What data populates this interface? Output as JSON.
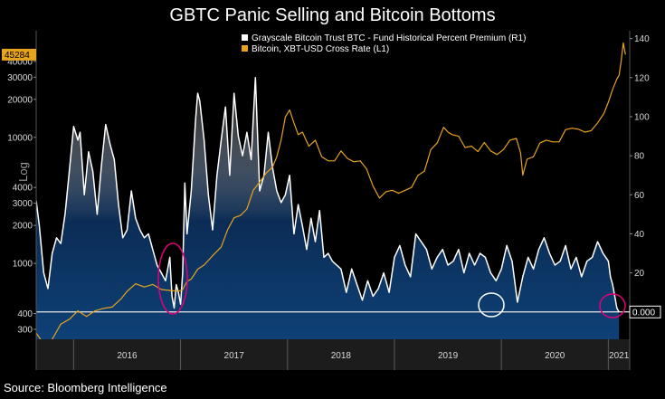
{
  "title": "GBTC Panic Selling and Bitcoin Bottoms",
  "source": "Source: Bloomberg Intelligence",
  "chart_data": {
    "type": "line",
    "title": "GBTC Panic Selling and Bitcoin Bottoms",
    "ylabel_left": "Log",
    "x_categories": [
      "2016",
      "2017",
      "2018",
      "2019",
      "2020",
      "2021"
    ],
    "x_domain": [
      2015.65,
      2021.2
    ],
    "y_left": {
      "scale": "log",
      "range": [
        250,
        70000
      ],
      "ticks": [
        300,
        400,
        1000,
        2000,
        3000,
        4000,
        10000,
        20000,
        30000,
        40000
      ]
    },
    "y_right": {
      "scale": "linear",
      "range": [
        -14,
        144
      ],
      "ticks": [
        20,
        40,
        60,
        80,
        100,
        120,
        140
      ]
    },
    "series": [
      {
        "name": "Grayscale Bitcoin Trust BTC - Fund Historical Percent Premium (R1)",
        "axis": "right",
        "color": "#ffffff",
        "style": "area",
        "x": [
          2015.65,
          2015.68,
          2015.72,
          2015.76,
          2015.8,
          2015.84,
          2015.88,
          2015.92,
          2015.96,
          2016.0,
          2016.04,
          2016.06,
          2016.1,
          2016.14,
          2016.18,
          2016.22,
          2016.26,
          2016.3,
          2016.34,
          2016.38,
          2016.42,
          2016.46,
          2016.5,
          2016.54,
          2016.58,
          2016.62,
          2016.66,
          2016.7,
          2016.74,
          2016.78,
          2016.82,
          2016.86,
          2016.9,
          2016.92,
          2016.94,
          2016.96,
          2016.98,
          2017.0,
          2017.02,
          2017.04,
          2017.06,
          2017.1,
          2017.14,
          2017.16,
          2017.18,
          2017.22,
          2017.26,
          2017.3,
          2017.34,
          2017.38,
          2017.42,
          2017.46,
          2017.5,
          2017.54,
          2017.58,
          2017.62,
          2017.66,
          2017.7,
          2017.74,
          2017.78,
          2017.82,
          2017.86,
          2017.9,
          2017.94,
          2017.98,
          2018.02,
          2018.06,
          2018.1,
          2018.14,
          2018.18,
          2018.22,
          2018.26,
          2018.3,
          2018.34,
          2018.38,
          2018.42,
          2018.46,
          2018.5,
          2018.55,
          2018.6,
          2018.65,
          2018.7,
          2018.75,
          2018.8,
          2018.85,
          2018.9,
          2018.95,
          2019.0,
          2019.05,
          2019.1,
          2019.15,
          2019.2,
          2019.25,
          2019.3,
          2019.35,
          2019.4,
          2019.45,
          2019.5,
          2019.55,
          2019.6,
          2019.65,
          2019.7,
          2019.75,
          2019.8,
          2019.85,
          2019.9,
          2019.95,
          2020.0,
          2020.05,
          2020.1,
          2020.15,
          2020.2,
          2020.25,
          2020.3,
          2020.35,
          2020.4,
          2020.45,
          2020.5,
          2020.55,
          2020.6,
          2020.65,
          2020.7,
          2020.75,
          2020.8,
          2020.85,
          2020.9,
          2020.95,
          2021.0,
          2021.02,
          2021.04,
          2021.06,
          2021.08,
          2021.1
        ],
        "values": [
          57,
          44,
          20,
          12,
          30,
          38,
          35,
          50,
          72,
          95,
          88,
          92,
          60,
          82,
          72,
          50,
          75,
          96,
          86,
          78,
          55,
          38,
          42,
          62,
          48,
          42,
          38,
          40,
          32,
          24,
          20,
          16,
          28,
          8,
          2,
          14,
          10,
          4,
          20,
          66,
          40,
          62,
          98,
          112,
          108,
          88,
          60,
          42,
          70,
          88,
          105,
          70,
          112,
          90,
          80,
          92,
          78,
          120,
          62,
          70,
          92,
          74,
          62,
          56,
          60,
          70,
          40,
          55,
          44,
          32,
          48,
          36,
          52,
          28,
          30,
          26,
          24,
          22,
          10,
          22,
          14,
          6,
          16,
          8,
          12,
          20,
          10,
          28,
          34,
          24,
          18,
          40,
          36,
          32,
          22,
          28,
          32,
          24,
          26,
          32,
          20,
          30,
          24,
          30,
          28,
          20,
          16,
          22,
          34,
          26,
          5,
          18,
          28,
          22,
          32,
          38,
          30,
          24,
          26,
          34,
          22,
          28,
          18,
          26,
          28,
          36,
          30,
          26,
          18,
          14,
          8,
          2,
          0
        ]
      },
      {
        "name": "Bitcoin, XBT-USD Cross Rate (L1)",
        "axis": "left",
        "color": "#e6a31e",
        "style": "line",
        "x": [
          2015.65,
          2015.72,
          2015.8,
          2015.88,
          2015.96,
          2016.04,
          2016.12,
          2016.2,
          2016.28,
          2016.36,
          2016.44,
          2016.5,
          2016.58,
          2016.66,
          2016.74,
          2016.82,
          2016.9,
          2016.98,
          2017.02,
          2017.06,
          2017.1,
          2017.16,
          2017.22,
          2017.3,
          2017.38,
          2017.44,
          2017.5,
          2017.56,
          2017.62,
          2017.68,
          2017.74,
          2017.8,
          2017.86,
          2017.9,
          2017.94,
          2017.98,
          2018.02,
          2018.06,
          2018.1,
          2018.14,
          2018.2,
          2018.26,
          2018.32,
          2018.38,
          2018.44,
          2018.5,
          2018.56,
          2018.62,
          2018.68,
          2018.74,
          2018.8,
          2018.86,
          2018.92,
          2018.98,
          2019.04,
          2019.1,
          2019.16,
          2019.22,
          2019.28,
          2019.34,
          2019.4,
          2019.46,
          2019.5,
          2019.54,
          2019.6,
          2019.66,
          2019.72,
          2019.78,
          2019.84,
          2019.9,
          2019.96,
          2020.02,
          2020.08,
          2020.14,
          2020.18,
          2020.2,
          2020.24,
          2020.3,
          2020.36,
          2020.42,
          2020.48,
          2020.54,
          2020.6,
          2020.66,
          2020.72,
          2020.78,
          2020.84,
          2020.9,
          2020.96,
          2021.0,
          2021.04,
          2021.08,
          2021.1,
          2021.12,
          2021.14,
          2021.16
        ],
        "values": [
          280,
          230,
          250,
          330,
          360,
          420,
          380,
          420,
          440,
          450,
          520,
          600,
          690,
          650,
          680,
          620,
          610,
          600,
          620,
          720,
          750,
          900,
          970,
          1150,
          1350,
          1850,
          2300,
          2400,
          2700,
          3800,
          4400,
          5200,
          5800,
          7000,
          9500,
          14500,
          16500,
          13000,
          10500,
          11000,
          8500,
          9500,
          7000,
          6500,
          6500,
          7800,
          6800,
          6400,
          6500,
          5600,
          4100,
          3300,
          3700,
          3800,
          3600,
          3800,
          4000,
          5000,
          5400,
          8000,
          9000,
          12000,
          11000,
          10500,
          10200,
          8300,
          8500,
          7700,
          9100,
          7800,
          7300,
          8000,
          9500,
          9800,
          7500,
          5000,
          6700,
          7000,
          9000,
          9500,
          9200,
          9200,
          11500,
          11800,
          11600,
          11000,
          11300,
          13000,
          15500,
          19000,
          24000,
          29000,
          31000,
          40000,
          56000,
          45284
        ]
      }
    ],
    "annotations": [
      {
        "type": "hline",
        "axis": "right",
        "value": 0,
        "label": "0.000"
      },
      {
        "type": "last-value-flag",
        "axis": "left",
        "value": 45284,
        "label": "45284"
      },
      {
        "type": "circle",
        "color": "#e0007a",
        "note": "GBTC premium low, late 2016"
      },
      {
        "type": "circle",
        "color": "#ffffff",
        "note": "GBTC premium low, early 2020"
      },
      {
        "type": "circle",
        "color": "#e0007a",
        "note": "GBTC premium low, early 2021"
      }
    ]
  }
}
